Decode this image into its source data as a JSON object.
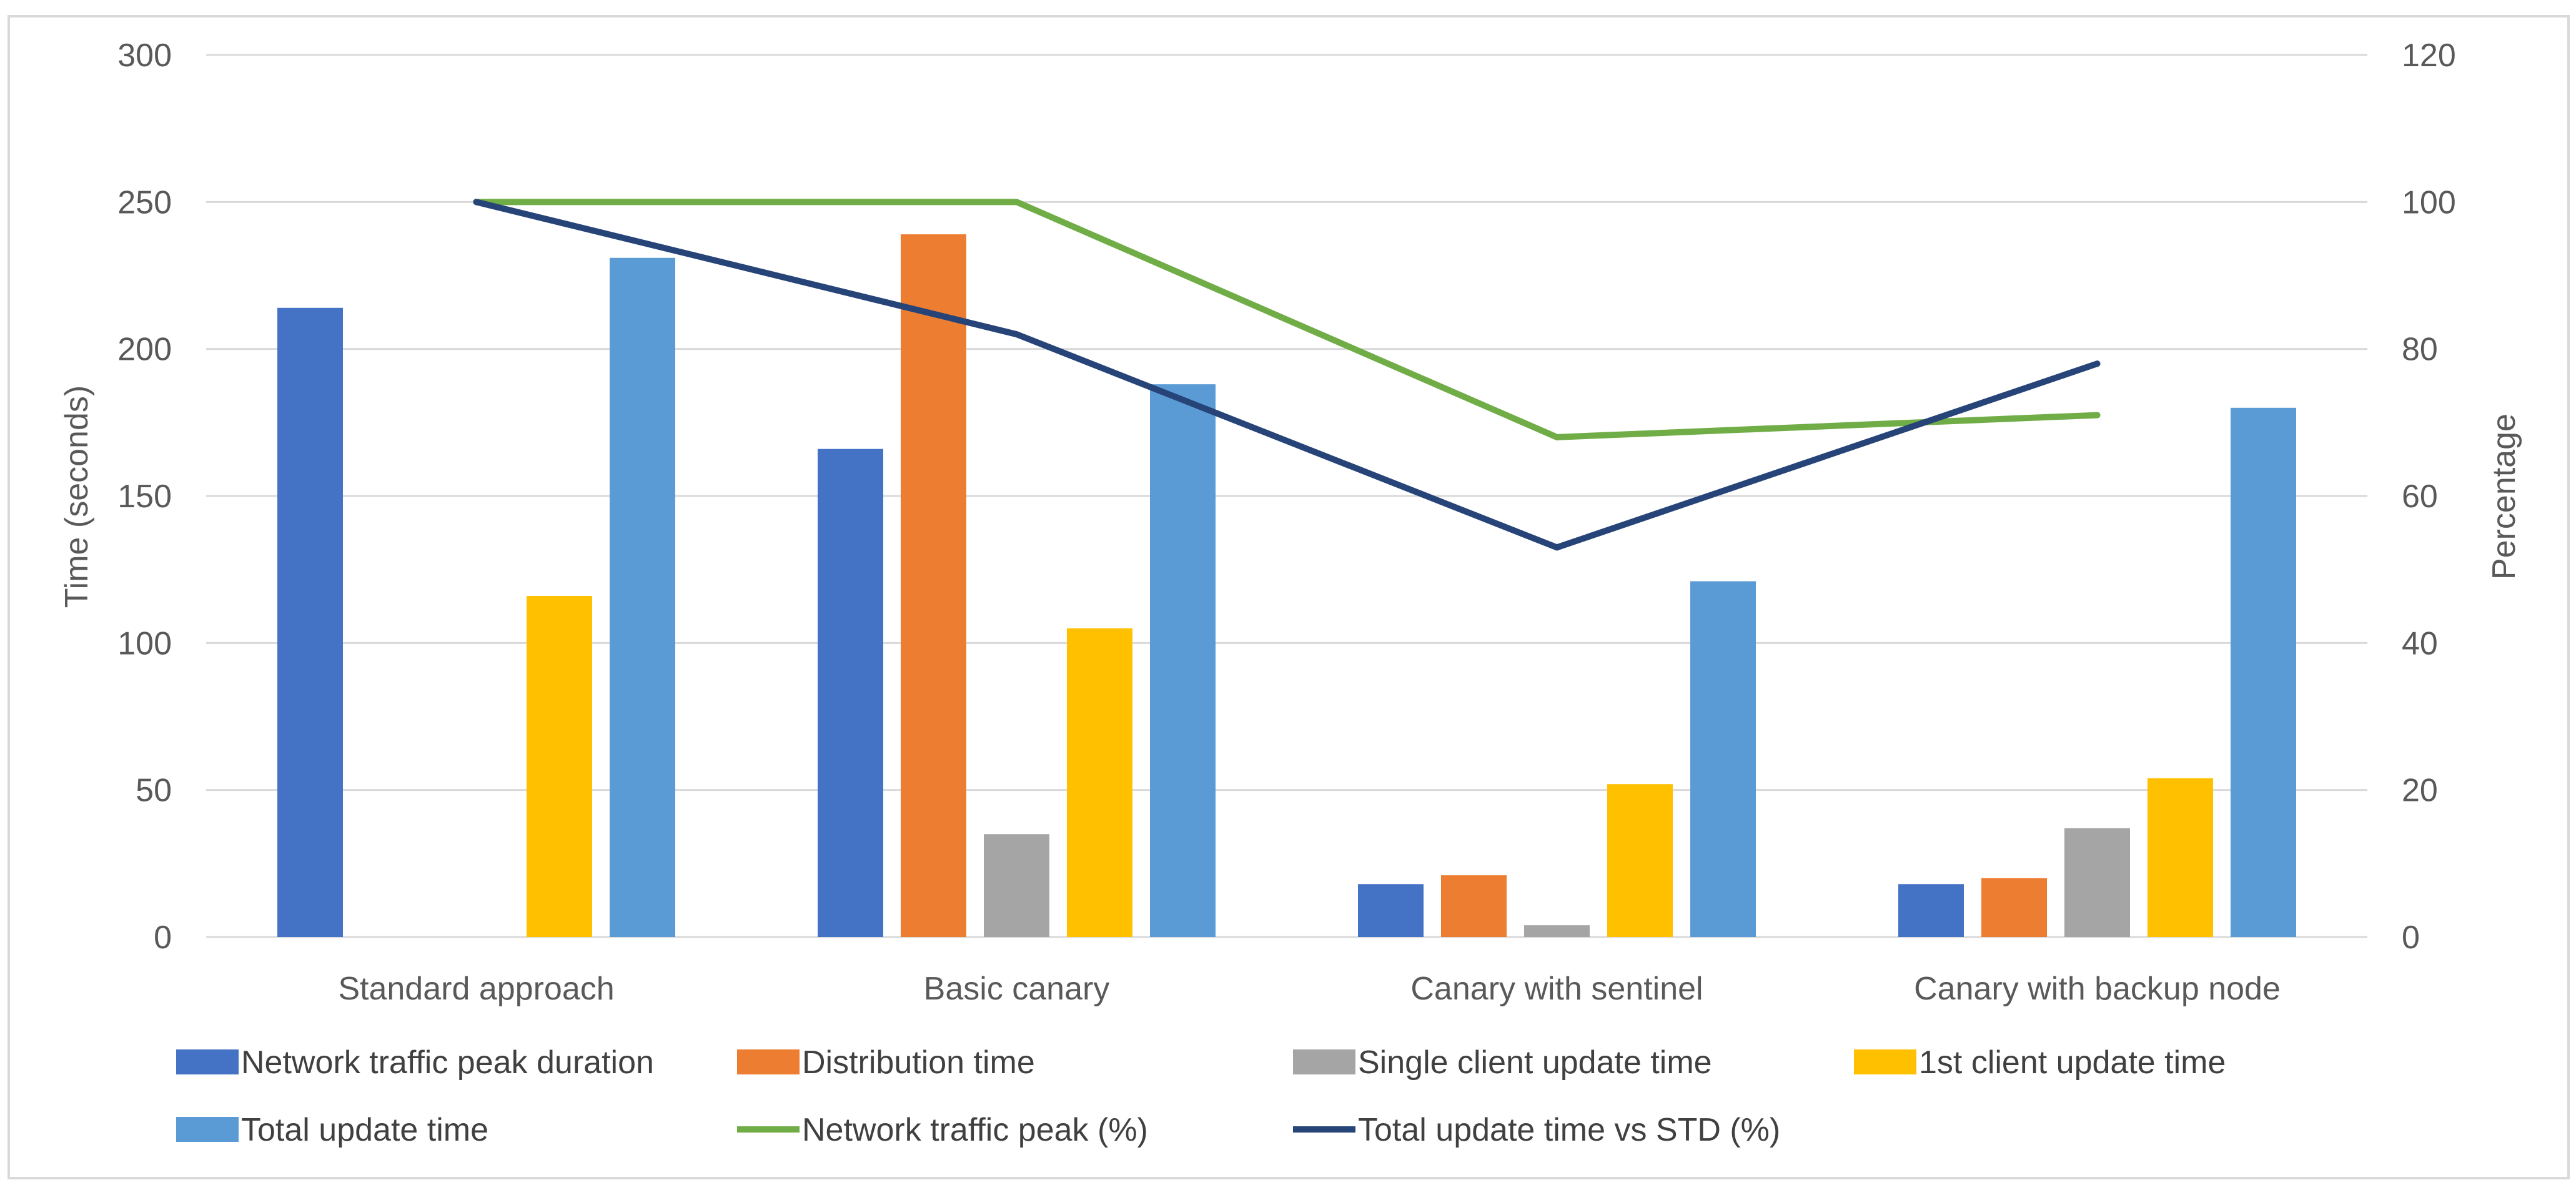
{
  "chart_data": {
    "type": "bar",
    "categories": [
      "Standard approach",
      "Basic canary",
      "Canary with sentinel",
      "Canary with backup node"
    ],
    "series": [
      {
        "name": "Network traffic peak duration",
        "kind": "bar",
        "axis": "left",
        "color": "#4472C4",
        "values": [
          214,
          166,
          18,
          18
        ]
      },
      {
        "name": "Distribution time",
        "kind": "bar",
        "axis": "left",
        "color": "#ED7D31",
        "values": [
          0,
          239,
          21,
          20
        ]
      },
      {
        "name": "Single client update time",
        "kind": "bar",
        "axis": "left",
        "color": "#A5A5A5",
        "values": [
          0,
          35,
          4,
          37
        ]
      },
      {
        "name": "1st client update time",
        "kind": "bar",
        "axis": "left",
        "color": "#FFC000",
        "values": [
          116,
          105,
          52,
          54
        ]
      },
      {
        "name": "Total update time",
        "kind": "bar",
        "axis": "left",
        "color": "#5B9BD5",
        "values": [
          231,
          188,
          121,
          180
        ]
      },
      {
        "name": "Network traffic peak (%)",
        "kind": "line",
        "axis": "right",
        "color": "#70AD47",
        "values": [
          100,
          100,
          68,
          71
        ]
      },
      {
        "name": "Total update time vs STD (%)",
        "kind": "line",
        "axis": "right",
        "color": "#264478",
        "values": [
          100,
          82,
          53,
          78
        ]
      }
    ],
    "ylabel": "Time (seconds)",
    "y2label": "Percentage",
    "ylim": [
      0,
      300
    ],
    "y2lim": [
      0,
      120
    ],
    "yticks": [
      "0",
      "50",
      "100",
      "150",
      "200",
      "250",
      "300"
    ],
    "y2ticks": [
      "0",
      "20",
      "40",
      "60",
      "80",
      "100",
      "120"
    ],
    "grid": true,
    "legend_position": "bottom"
  }
}
